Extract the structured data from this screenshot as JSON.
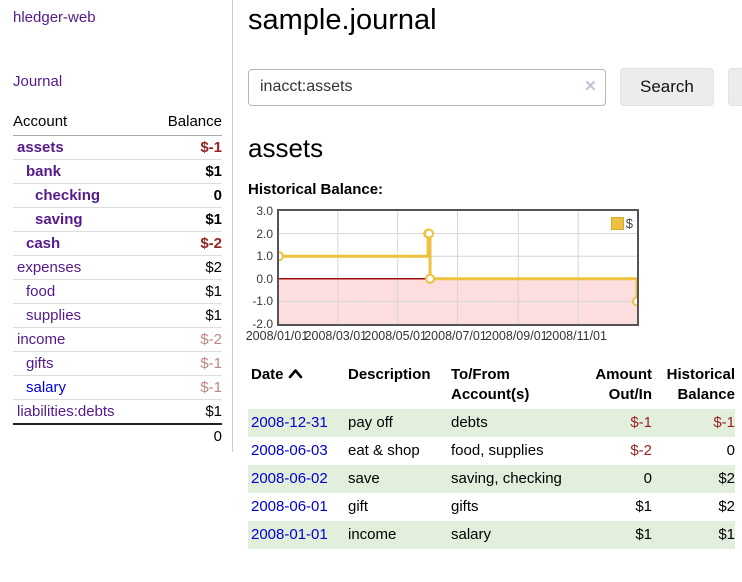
{
  "colors": {
    "visited_link_purple": "#551a8b",
    "unvisited_link_blue": "#0000e0",
    "date_link_blue": "#0000cc",
    "negative_red": "#992222",
    "negative_faded_red": "#c08585",
    "row_stripe_green": "#e3efdd",
    "button_gray": "#ececec",
    "chart_line_yellow": "#edc240",
    "chart_negative_pink": "#fcdede",
    "chart_zero_line_red": "#a01010"
  },
  "sidebar": {
    "brand": "hledger-web",
    "journal_link": "Journal",
    "accounts": {
      "col_account": "Account",
      "col_balance": "Balance",
      "rows": [
        {
          "name": "assets",
          "level": 1,
          "bold": true,
          "balance": "$-1",
          "balance_style": "neg"
        },
        {
          "name": "bank",
          "level": 2,
          "bold": true,
          "balance": "$1"
        },
        {
          "name": "checking",
          "level": 3,
          "bold": true,
          "balance": "0"
        },
        {
          "name": "saving",
          "level": 3,
          "bold": true,
          "balance": "$1"
        },
        {
          "name": "cash",
          "level": 2,
          "bold": true,
          "balance": "$-2",
          "balance_style": "neg"
        },
        {
          "name": "expenses",
          "level": 1,
          "bold": false,
          "balance": "$2"
        },
        {
          "name": "food",
          "level": 2,
          "bold": false,
          "balance": "$1"
        },
        {
          "name": "supplies",
          "level": 2,
          "bold": false,
          "balance": "$1"
        },
        {
          "name": "income",
          "level": 1,
          "bold": false,
          "balance": "$-2",
          "balance_style": "neg-faded"
        },
        {
          "name": "gifts",
          "level": 2,
          "bold": false,
          "balance": "$-1",
          "balance_style": "neg-faded"
        },
        {
          "name": "salary",
          "level": 2,
          "bold": false,
          "balance": "$-1",
          "balance_style": "neg-faded",
          "link_style": "unvisited"
        },
        {
          "name": "liabilities:debts",
          "level": 1,
          "bold": false,
          "balance": "$1"
        }
      ],
      "total": "0"
    }
  },
  "main": {
    "title": "sample.journal",
    "search": {
      "value": "inacct:assets",
      "clear_icon": "×",
      "button_label": "Search",
      "help_button_label": "?"
    },
    "account_heading": "assets",
    "chart_label": "Historical Balance:"
  },
  "chart_data": {
    "type": "line",
    "title": "Historical Balance",
    "step": true,
    "xlim": [
      "2008-01-01",
      "2008-12-31"
    ],
    "ylim": [
      -2,
      3
    ],
    "x_ticks": [
      "2008/01/01",
      "2008/03/01",
      "2008/05/01",
      "2008/07/01",
      "2008/09/01",
      "2008/11/01"
    ],
    "y_ticks": [
      "3.0",
      "2.0",
      "1.0",
      "0.0",
      "-1.0",
      "-2.0"
    ],
    "series": [
      {
        "name": "$",
        "color": "#edc240",
        "points": [
          [
            "2008-01-01",
            1
          ],
          [
            "2008-06-01",
            2
          ],
          [
            "2008-06-02",
            2
          ],
          [
            "2008-06-03",
            0
          ],
          [
            "2008-12-31",
            -1
          ]
        ]
      }
    ],
    "legend_position": "top-right",
    "grid": true,
    "grid_color": "#d6d6d6",
    "negative_region_color": "#fcdede",
    "zero_line_color": "#a01010"
  },
  "register": {
    "columns": [
      "Date",
      "Description",
      "To/From Account(s)",
      "Amount Out/In",
      "Historical Balance"
    ],
    "sort_icon": "chevron-up",
    "rows": [
      {
        "date": "2008-12-31",
        "description": "pay off",
        "accounts": "debts",
        "amount": "$-1",
        "amount_neg": true,
        "balance": "$-1",
        "balance_neg": true
      },
      {
        "date": "2008-06-03",
        "description": "eat & shop",
        "accounts": "food, supplies",
        "amount": "$-2",
        "amount_neg": true,
        "balance": "0",
        "balance_neg": false
      },
      {
        "date": "2008-06-02",
        "description": "save",
        "accounts": "saving, checking",
        "amount": "0",
        "amount_neg": false,
        "balance": "$2",
        "balance_neg": false
      },
      {
        "date": "2008-06-01",
        "description": "gift",
        "accounts": "gifts",
        "amount": "$1",
        "amount_neg": false,
        "balance": "$2",
        "balance_neg": false
      },
      {
        "date": "2008-01-01",
        "description": "income",
        "accounts": "salary",
        "amount": "$1",
        "amount_neg": false,
        "balance": "$1",
        "balance_neg": false
      }
    ]
  }
}
